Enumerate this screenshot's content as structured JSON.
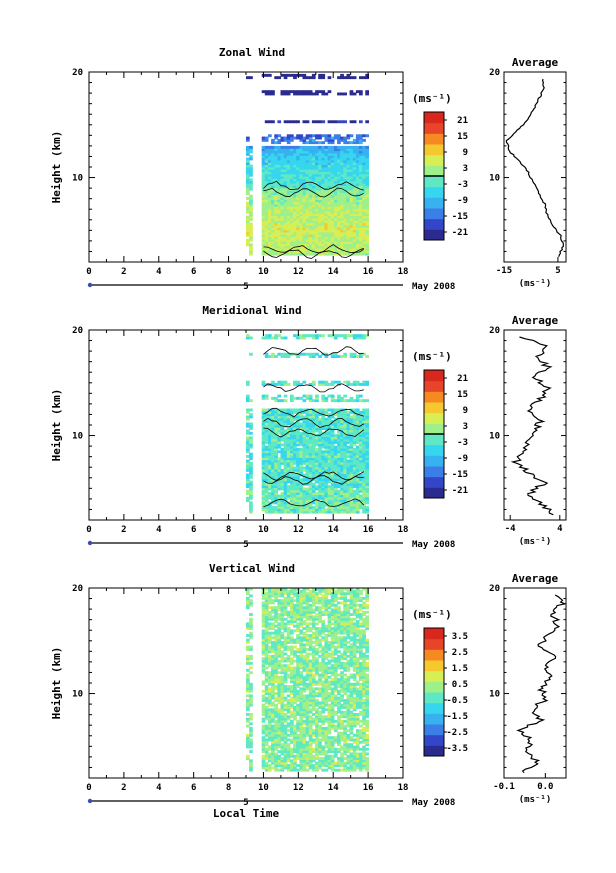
{
  "figure": {
    "x_axis_label": "Local Time",
    "date_label": "May 2008",
    "panel_title_average": "Average",
    "y_axis_label": "Height (km)",
    "colorbar_unit": "(ms⁻¹)",
    "average_unit": "(ms⁻¹)",
    "day_marker_label": "5",
    "colors": {
      "colormap": [
        "#2b2b8f",
        "#3346c8",
        "#3b7ee8",
        "#38b1f0",
        "#36d6ef",
        "#5ee8c4",
        "#9ff08b",
        "#d8ee55",
        "#f6c830",
        "#f68a22",
        "#e8442a",
        "#d8281e"
      ],
      "contour": "#000000",
      "axis": "#000000",
      "marker": "#3a4db0"
    }
  },
  "chart_data": [
    {
      "type": "heatmap",
      "title": "Zonal Wind",
      "ylabel": "Height (km)",
      "xlabel": "",
      "xlim": [
        0,
        18
      ],
      "ylim": [
        2,
        20
      ],
      "x_ticks": [
        "0",
        "2",
        "4",
        "6",
        "8",
        "10",
        "12",
        "14",
        "16",
        "18"
      ],
      "y_ticks": [
        "10",
        "20"
      ],
      "data_x_range": [
        9,
        16
      ],
      "data_gap": [
        9.3,
        9.8
      ],
      "colorbar": {
        "ticks": [
          "21",
          "15",
          "9",
          "3",
          "-3",
          "-9",
          "-15",
          "-21"
        ],
        "range": [
          -24,
          24
        ],
        "zero_line": true
      },
      "average": {
        "title": "Average",
        "xlim": [
          -15,
          8
        ],
        "x_ticks": [
          "-15",
          "5"
        ],
        "xlabel": "(ms⁻¹)",
        "ylim": [
          2,
          20
        ],
        "y_ticks": [
          "10",
          "20"
        ],
        "profile": [
          [
            5,
            2.5
          ],
          [
            7,
            3.5
          ],
          [
            6,
            4.5
          ],
          [
            3,
            5.5
          ],
          [
            1,
            6.5
          ],
          [
            0,
            7.5
          ],
          [
            -2,
            8.5
          ],
          [
            -4,
            9.5
          ],
          [
            -6,
            10.5
          ],
          [
            -9,
            11.5
          ],
          [
            -13,
            12.5
          ],
          [
            -14,
            13.5
          ],
          [
            -10,
            14.5
          ],
          [
            -6,
            15.5
          ],
          [
            -4,
            16.5
          ],
          [
            -2,
            17.5
          ],
          [
            0,
            18.5
          ],
          [
            -1,
            19.5
          ]
        ]
      },
      "value_fn": "zonal"
    },
    {
      "type": "heatmap",
      "title": "Meridional Wind",
      "ylabel": "Height (km)",
      "xlabel": "",
      "xlim": [
        0,
        18
      ],
      "ylim": [
        2,
        20
      ],
      "x_ticks": [
        "0",
        "2",
        "4",
        "6",
        "8",
        "10",
        "12",
        "14",
        "16",
        "18"
      ],
      "y_ticks": [
        "10",
        "20"
      ],
      "data_x_range": [
        9,
        16
      ],
      "data_gap": [
        9.3,
        9.8
      ],
      "colorbar": {
        "ticks": [
          "21",
          "15",
          "9",
          "3",
          "-3",
          "-9",
          "-15",
          "-21"
        ],
        "range": [
          -24,
          24
        ],
        "zero_line": true
      },
      "average": {
        "title": "Average",
        "xlim": [
          -5,
          5
        ],
        "x_ticks": [
          "-4",
          "4"
        ],
        "xlabel": "(ms⁻¹)",
        "ylim": [
          2,
          20
        ],
        "y_ticks": [
          "10",
          "20"
        ],
        "profile": [
          [
            3,
            2.5
          ],
          [
            1,
            3.5
          ],
          [
            -1,
            4.5
          ],
          [
            1.5,
            5.5
          ],
          [
            -1,
            6.5
          ],
          [
            -3,
            7.5
          ],
          [
            -2,
            8.5
          ],
          [
            -1,
            9.5
          ],
          [
            0,
            10.5
          ],
          [
            1,
            11.5
          ],
          [
            -1,
            12.5
          ],
          [
            1,
            13.5
          ],
          [
            2,
            14.5
          ],
          [
            0,
            15.5
          ],
          [
            2,
            16.5
          ],
          [
            0.5,
            17.5
          ],
          [
            2,
            18.5
          ],
          [
            -3,
            19.5
          ]
        ]
      },
      "value_fn": "meridional"
    },
    {
      "type": "heatmap",
      "title": "Vertical Wind",
      "ylabel": "Height (km)",
      "xlabel": "Local Time",
      "xlim": [
        0,
        18
      ],
      "ylim": [
        2,
        20
      ],
      "x_ticks": [
        "0",
        "2",
        "4",
        "6",
        "8",
        "10",
        "12",
        "14",
        "16",
        "18"
      ],
      "y_ticks": [
        "10",
        "20"
      ],
      "data_x_range": [
        9,
        16
      ],
      "data_gap": [
        9.3,
        9.8
      ],
      "colorbar": {
        "ticks": [
          "3.5",
          "2.5",
          "1.5",
          "0.5",
          "-0.5",
          "-1.5",
          "-2.5",
          "-3.5"
        ],
        "range": [
          -4,
          4
        ],
        "zero_line": false
      },
      "average": {
        "title": "Average",
        "xlim": [
          -0.1,
          0.05
        ],
        "x_ticks": [
          "-0.1",
          "0.0"
        ],
        "xlabel": "(ms⁻¹)",
        "ylim": [
          2,
          20
        ],
        "y_ticks": [
          "10",
          "20"
        ],
        "profile": [
          [
            -0.06,
            2.5
          ],
          [
            -0.02,
            3.5
          ],
          [
            -0.05,
            4.5
          ],
          [
            -0.03,
            5.5
          ],
          [
            -0.06,
            6.5
          ],
          [
            -0.01,
            7.5
          ],
          [
            -0.03,
            8.5
          ],
          [
            0.0,
            9.5
          ],
          [
            -0.01,
            10.5
          ],
          [
            0.01,
            11.5
          ],
          [
            0.0,
            12.5
          ],
          [
            0.02,
            13.5
          ],
          [
            -0.02,
            14.5
          ],
          [
            0.01,
            15.5
          ],
          [
            0.03,
            16.5
          ],
          [
            0.02,
            17.5
          ],
          [
            0.04,
            18.5
          ],
          [
            0.03,
            19.5
          ]
        ]
      },
      "value_fn": "vertical"
    }
  ]
}
